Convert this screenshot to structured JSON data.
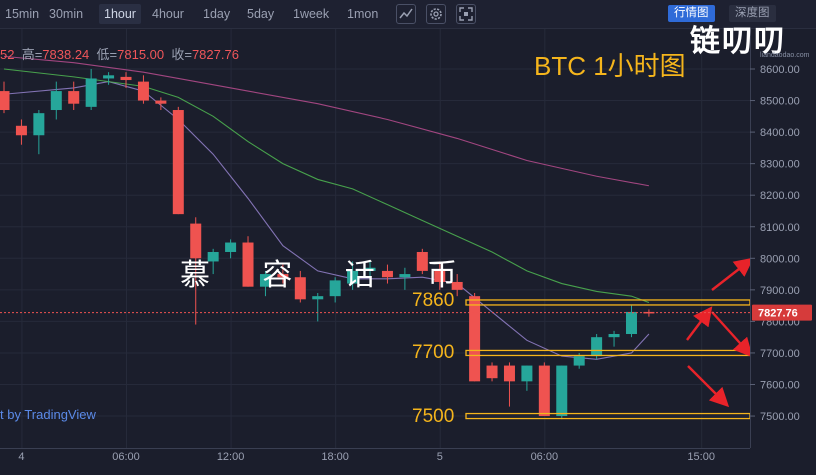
{
  "toolbar": {
    "timeframes": [
      "15min",
      "30min",
      "1hour",
      "4hour",
      "1day",
      "5day",
      "1week",
      "1mon"
    ],
    "active_timeframe": "1hour",
    "icons": [
      "chart-type-icon",
      "settings-gear-icon",
      "fullscreen-icon"
    ],
    "view_buttons": [
      "行情图",
      "深度图"
    ],
    "active_view": "行情图"
  },
  "brand": {
    "logo_text": "链叨叨",
    "site": "liandaodao.com"
  },
  "ohlc": {
    "open_partial": "52",
    "high_label": "高=",
    "high": "7838.24",
    "low_label": "低=",
    "low": "7815.00",
    "close_label": "收=",
    "close": "7827.76"
  },
  "title": "BTC  1小时图",
  "watermark": [
    "慕",
    "容",
    "话",
    "币"
  ],
  "tradingview": "t by TradingView",
  "levels": [
    {
      "label": "7860",
      "value": 7860
    },
    {
      "label": "7700",
      "value": 7700
    },
    {
      "label": "7500",
      "value": 7500
    }
  ],
  "colors": {
    "up": "#26a69a",
    "down": "#ef5350",
    "level": "#f5b51c",
    "arrow": "#e8232a",
    "ma_fast": "#8e7cc3",
    "ma_mid": "#4caf50",
    "ma_slow": "#b04a8a",
    "bg": "#1b1e2c"
  },
  "chart_data": {
    "type": "candlestick",
    "timeframe": "1hour",
    "ylim": [
      7440,
      8680
    ],
    "y_ticks": [
      "8600.00",
      "8500.00",
      "8400.00",
      "8300.00",
      "8200.00",
      "8100.00",
      "8000.00",
      "7900.00",
      "7800.00",
      "7700.00",
      "7600.00",
      "7500.00"
    ],
    "y_tick_values": [
      8600,
      8500,
      8400,
      8300,
      8200,
      8100,
      8000,
      7900,
      7800,
      7700,
      7600,
      7500
    ],
    "current_price": 7827.76,
    "current_price_label": "7827.76",
    "x_ticks": [
      "4",
      "06:00",
      "12:00",
      "18:00",
      "5",
      "06:00",
      "15:00"
    ],
    "x_tick_index": [
      1,
      7,
      13,
      19,
      25,
      31,
      40
    ],
    "candles": [
      {
        "i": 0,
        "o": 8530,
        "h": 8560,
        "l": 8460,
        "c": 8470
      },
      {
        "i": 1,
        "o": 8420,
        "h": 8440,
        "l": 8360,
        "c": 8390
      },
      {
        "i": 2,
        "o": 8390,
        "h": 8470,
        "l": 8330,
        "c": 8460
      },
      {
        "i": 3,
        "o": 8470,
        "h": 8560,
        "l": 8440,
        "c": 8530
      },
      {
        "i": 4,
        "o": 8530,
        "h": 8560,
        "l": 8470,
        "c": 8490
      },
      {
        "i": 5,
        "o": 8480,
        "h": 8600,
        "l": 8470,
        "c": 8570
      },
      {
        "i": 6,
        "o": 8570,
        "h": 8590,
        "l": 8550,
        "c": 8580
      },
      {
        "i": 7,
        "o": 8575,
        "h": 8590,
        "l": 8540,
        "c": 8565
      },
      {
        "i": 8,
        "o": 8560,
        "h": 8580,
        "l": 8490,
        "c": 8500
      },
      {
        "i": 9,
        "o": 8500,
        "h": 8510,
        "l": 8470,
        "c": 8490
      },
      {
        "i": 10,
        "o": 8470,
        "h": 8480,
        "l": 8140,
        "c": 8140
      },
      {
        "i": 11,
        "o": 8110,
        "h": 8130,
        "l": 7790,
        "c": 8000
      },
      {
        "i": 12,
        "o": 7990,
        "h": 8030,
        "l": 7950,
        "c": 8020
      },
      {
        "i": 13,
        "o": 8020,
        "h": 8060,
        "l": 8000,
        "c": 8050
      },
      {
        "i": 14,
        "o": 8050,
        "h": 8070,
        "l": 7910,
        "c": 7910
      },
      {
        "i": 15,
        "o": 7910,
        "h": 7960,
        "l": 7880,
        "c": 7950
      },
      {
        "i": 16,
        "o": 7950,
        "h": 7980,
        "l": 7920,
        "c": 7940
      },
      {
        "i": 17,
        "o": 7940,
        "h": 7960,
        "l": 7860,
        "c": 7870
      },
      {
        "i": 18,
        "o": 7870,
        "h": 7890,
        "l": 7800,
        "c": 7880
      },
      {
        "i": 19,
        "o": 7880,
        "h": 7940,
        "l": 7860,
        "c": 7930
      },
      {
        "i": 20,
        "o": 7920,
        "h": 7990,
        "l": 7900,
        "c": 7960
      },
      {
        "i": 21,
        "o": 7960,
        "h": 7990,
        "l": 7940,
        "c": 7970
      },
      {
        "i": 22,
        "o": 7960,
        "h": 7980,
        "l": 7920,
        "c": 7940
      },
      {
        "i": 23,
        "o": 7940,
        "h": 7970,
        "l": 7900,
        "c": 7950
      },
      {
        "i": 24,
        "o": 8020,
        "h": 8030,
        "l": 7950,
        "c": 7960
      },
      {
        "i": 25,
        "o": 7960,
        "h": 7990,
        "l": 7900,
        "c": 7925
      },
      {
        "i": 26,
        "o": 7925,
        "h": 7950,
        "l": 7880,
        "c": 7900
      },
      {
        "i": 27,
        "o": 7880,
        "h": 7890,
        "l": 7610,
        "c": 7610
      },
      {
        "i": 28,
        "o": 7660,
        "h": 7670,
        "l": 7610,
        "c": 7620
      },
      {
        "i": 29,
        "o": 7660,
        "h": 7670,
        "l": 7530,
        "c": 7610
      },
      {
        "i": 30,
        "o": 7610,
        "h": 7660,
        "l": 7580,
        "c": 7660
      },
      {
        "i": 31,
        "o": 7660,
        "h": 7670,
        "l": 7500,
        "c": 7500
      },
      {
        "i": 32,
        "o": 7500,
        "h": 7660,
        "l": 7490,
        "c": 7660
      },
      {
        "i": 33,
        "o": 7660,
        "h": 7700,
        "l": 7650,
        "c": 7690
      },
      {
        "i": 34,
        "o": 7690,
        "h": 7760,
        "l": 7680,
        "c": 7750
      },
      {
        "i": 35,
        "o": 7750,
        "h": 7770,
        "l": 7720,
        "c": 7760
      },
      {
        "i": 36,
        "o": 7760,
        "h": 7850,
        "l": 7750,
        "c": 7830
      },
      {
        "i": 37,
        "o": 7830,
        "h": 7838,
        "l": 7815,
        "c": 7828
      }
    ],
    "ma_fast": [
      [
        0,
        8520
      ],
      [
        4,
        8540
      ],
      [
        6,
        8560
      ],
      [
        8,
        8530
      ],
      [
        10,
        8440
      ],
      [
        12,
        8330
      ],
      [
        14,
        8190
      ],
      [
        16,
        8040
      ],
      [
        18,
        7960
      ],
      [
        20,
        7935
      ],
      [
        22,
        7935
      ],
      [
        24,
        7940
      ],
      [
        26,
        7920
      ],
      [
        28,
        7830
      ],
      [
        30,
        7740
      ],
      [
        32,
        7690
      ],
      [
        34,
        7680
      ],
      [
        36,
        7700
      ],
      [
        37,
        7760
      ]
    ],
    "ma_mid": [
      [
        0,
        8600
      ],
      [
        4,
        8575
      ],
      [
        8,
        8545
      ],
      [
        10,
        8510
      ],
      [
        12,
        8450
      ],
      [
        14,
        8370
      ],
      [
        16,
        8300
      ],
      [
        18,
        8250
      ],
      [
        20,
        8220
      ],
      [
        22,
        8170
      ],
      [
        24,
        8120
      ],
      [
        26,
        8070
      ],
      [
        28,
        8020
      ],
      [
        30,
        7960
      ],
      [
        32,
        7920
      ],
      [
        34,
        7895
      ],
      [
        36,
        7880
      ],
      [
        37,
        7860
      ]
    ],
    "ma_slow": [
      [
        0,
        8640
      ],
      [
        4,
        8620
      ],
      [
        8,
        8590
      ],
      [
        10,
        8570
      ],
      [
        14,
        8530
      ],
      [
        18,
        8490
      ],
      [
        22,
        8440
      ],
      [
        26,
        8380
      ],
      [
        30,
        8310
      ],
      [
        34,
        8260
      ],
      [
        37,
        8230
      ]
    ]
  }
}
